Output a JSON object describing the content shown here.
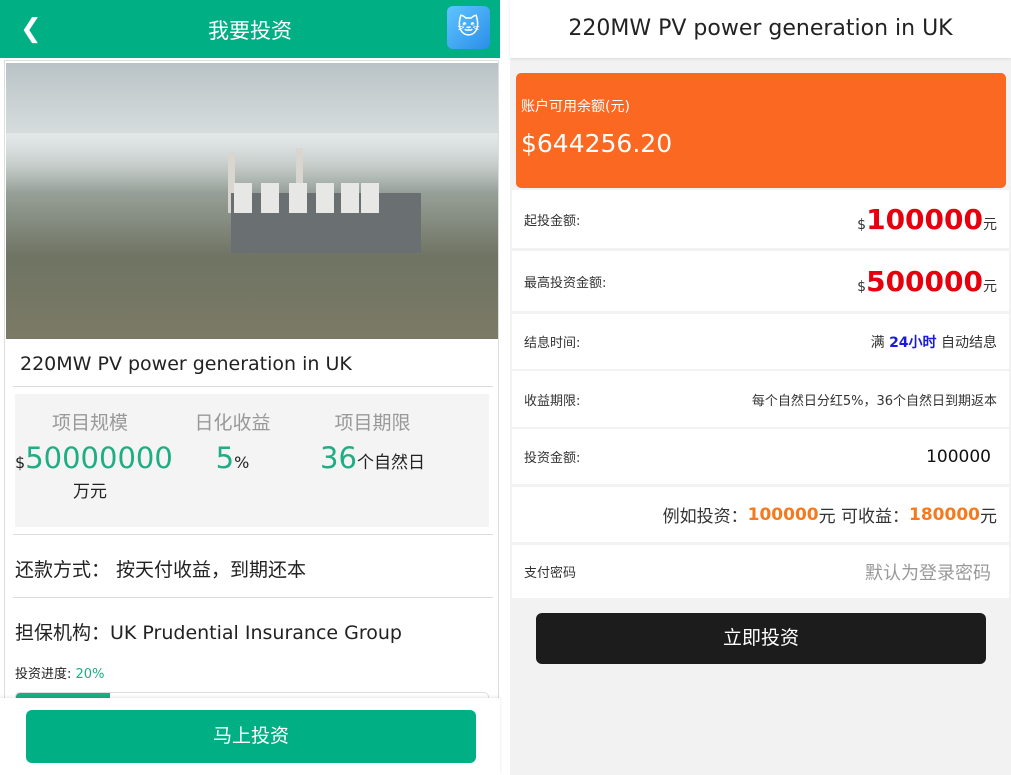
{
  "left": {
    "header": {
      "title": "我要投资",
      "back_icon": "chevron-left-icon",
      "app_icon": "cat-glasses-app-icon"
    },
    "project": {
      "title": "220MW PV power generation in UK",
      "stats": {
        "scale_label": "项目规模",
        "scale_prefix": "$",
        "scale_value": "50000000",
        "scale_unit": "万元",
        "yield_label": "日化收益",
        "yield_value": "5",
        "yield_unit": "%",
        "term_label": "项目期限",
        "term_value": "36",
        "term_unit": "个自然日"
      },
      "repay": "还款方式：  按天付收益，到期还本",
      "guarantor": "担保机构：UK Prudential Insurance Group",
      "progress_label": "投资进度:",
      "progress_text": "20%",
      "progress": 20
    },
    "invest_button": "马上投资"
  },
  "right": {
    "header": {
      "title": "220MW PV power generation in UK"
    },
    "balance": {
      "label": "账户可用余额(元)",
      "value": "$644256.20"
    },
    "rows": {
      "min": {
        "label": "起投金额:",
        "prefix": "$",
        "value": "100000",
        "unit": "元"
      },
      "max": {
        "label": "最高投资金额:",
        "prefix": "$",
        "value": "500000",
        "unit": "元"
      },
      "interest": {
        "label": "结息时间:",
        "pre": "满 ",
        "highlight": "24小时",
        "post": " 自动结息"
      },
      "term": {
        "label": "收益期限:",
        "value": "每个自然日分红5%，36个自然日到期返本"
      },
      "amount": {
        "label": "投资金额:",
        "value": "100000"
      },
      "example": {
        "pre": "例如投资：",
        "invest": "100000",
        "mid": " 元 可收益：",
        "ret": "180000",
        "unit": "元"
      },
      "password": {
        "label": "支付密码",
        "placeholder": "默认为登录密码"
      }
    },
    "submit": "立即投资"
  },
  "colors": {
    "green": "#00b084",
    "orange": "#fb6822",
    "red": "#e6000d",
    "blue": "#1a1adb"
  }
}
